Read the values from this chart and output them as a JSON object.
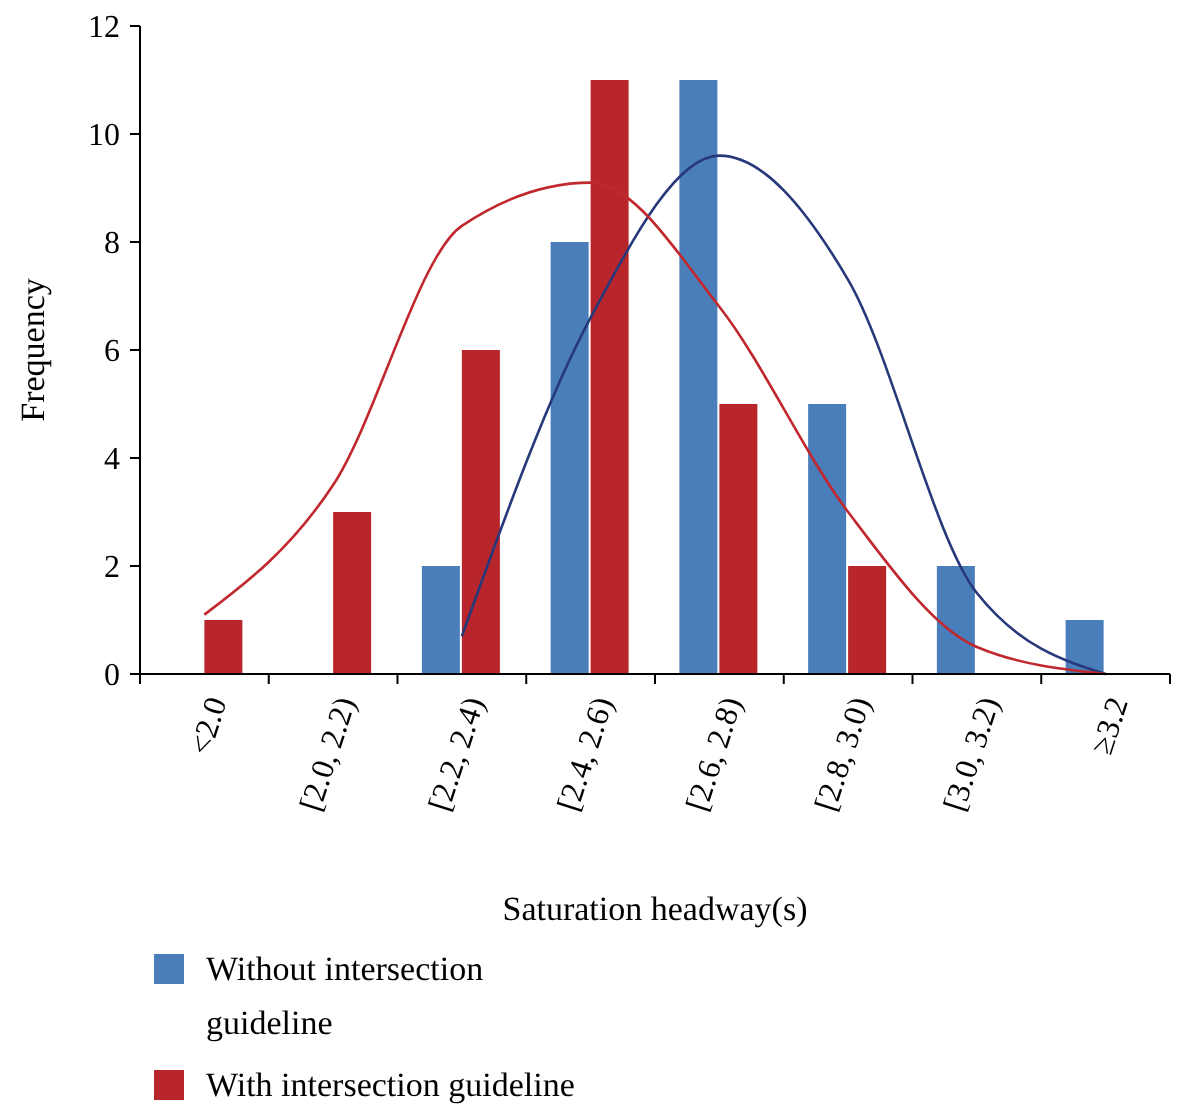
{
  "chart_data": {
    "type": "bar",
    "xlabel": "Saturation headway(s)",
    "ylabel": "Frequency",
    "categories": [
      "<2.0",
      "[2.0, 2.2)",
      "[2.2, 2.4)",
      "[2.4, 2.6)",
      "[2.6, 2.8)",
      "[2.8, 3.0)",
      "[3.0, 3.2)",
      "≥3.2"
    ],
    "series": [
      {
        "name": "Without intersection guideline",
        "color": "#4a7ebb",
        "values": [
          0,
          0,
          2,
          8,
          11,
          5,
          2,
          1
        ]
      },
      {
        "name": "With intersection guideline",
        "color": "#b8252b",
        "values": [
          1,
          3,
          6,
          11,
          5,
          2,
          0,
          0
        ]
      },
      {
        "type": "line",
        "color": "#27397a",
        "values": [
          null,
          null,
          0.7,
          6.6,
          9.6,
          7.3,
          1.5,
          0
        ]
      },
      {
        "type": "line",
        "color": "#c0282e",
        "values": [
          1.1,
          3.5,
          8.3,
          9.1,
          6.8,
          3,
          0.5,
          0
        ]
      }
    ],
    "ylim": [
      0,
      12
    ],
    "yticks": [
      0,
      2,
      4,
      6,
      8,
      10,
      12
    ],
    "grid": false,
    "legend": "bottom"
  }
}
